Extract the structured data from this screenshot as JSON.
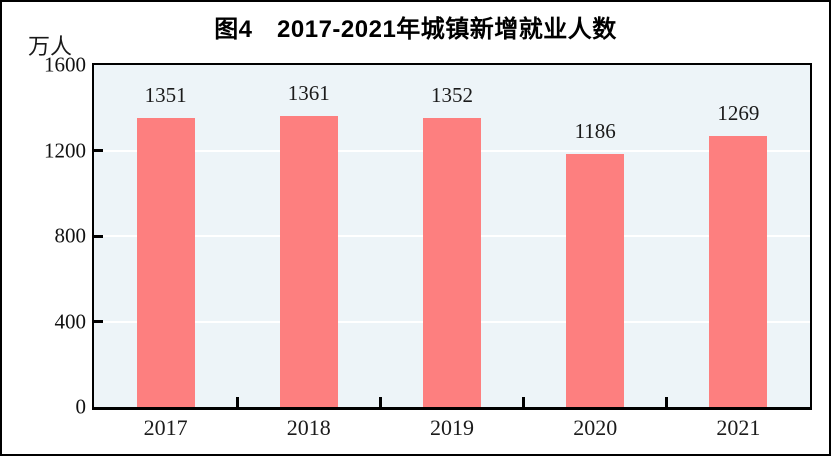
{
  "chart_data": {
    "type": "bar",
    "title": "图4　2017-2021年城镇新增就业人数",
    "unit": "万人",
    "categories": [
      "2017",
      "2018",
      "2019",
      "2020",
      "2021"
    ],
    "values": [
      1351,
      1361,
      1352,
      1186,
      1269
    ],
    "value_labels": [
      "1351",
      "1361",
      "1352",
      "1186",
      "1269"
    ],
    "xlabel": "",
    "ylabel": "万人",
    "ylim": [
      0,
      1600
    ],
    "yticks": [
      0,
      400,
      800,
      1200,
      1600
    ],
    "ytick_labels": [
      "0",
      "400",
      "800",
      "1200",
      "1600"
    ],
    "grid": "horizontal",
    "legend": "none",
    "colors": {
      "bar": "#fd7f7f",
      "plot_background": "#edf4f8",
      "gridline": "#ffffff",
      "axis": "#000000",
      "text": "#1b1b1b",
      "frame_border": "#000000",
      "page_background": "#ffffff"
    }
  }
}
